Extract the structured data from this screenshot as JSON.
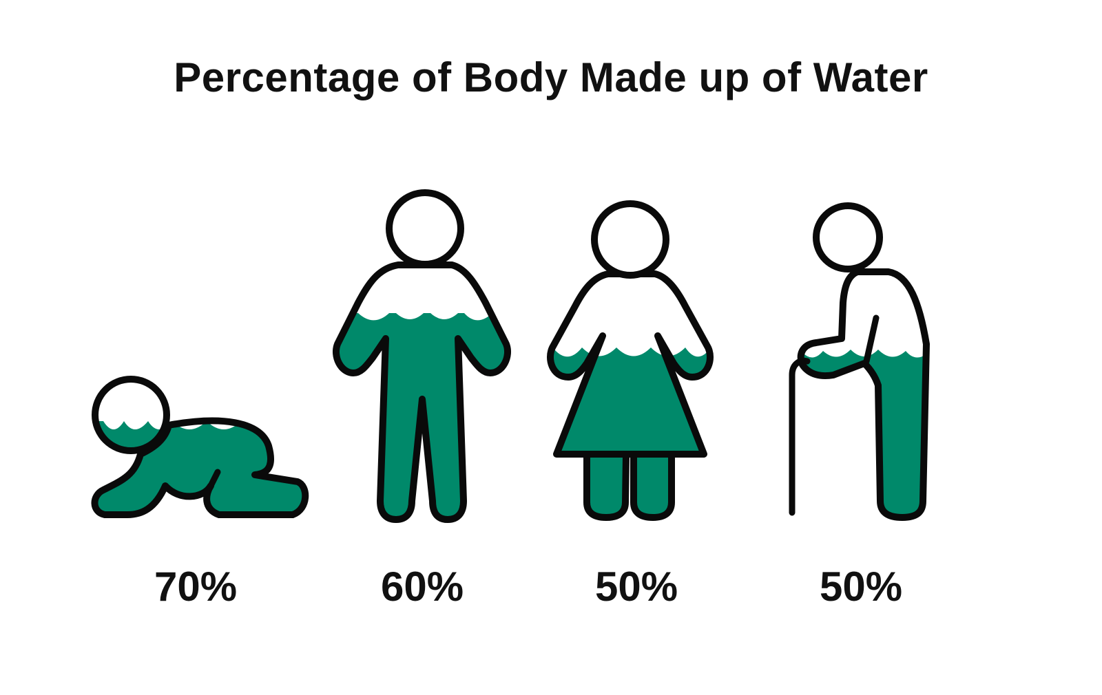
{
  "chart_data": {
    "type": "pictograph",
    "title": "Percentage of Body Made up of Water",
    "unit": "%",
    "ylim": [
      0,
      100
    ],
    "categories": [
      "baby",
      "man",
      "woman",
      "elderly person"
    ],
    "values": [
      70,
      60,
      50,
      50
    ],
    "labels": [
      "70%",
      "60%",
      "50%",
      "50%"
    ],
    "colors": {
      "water": "#00896a",
      "outline": "#0a0a0a",
      "text": "#111111"
    }
  }
}
